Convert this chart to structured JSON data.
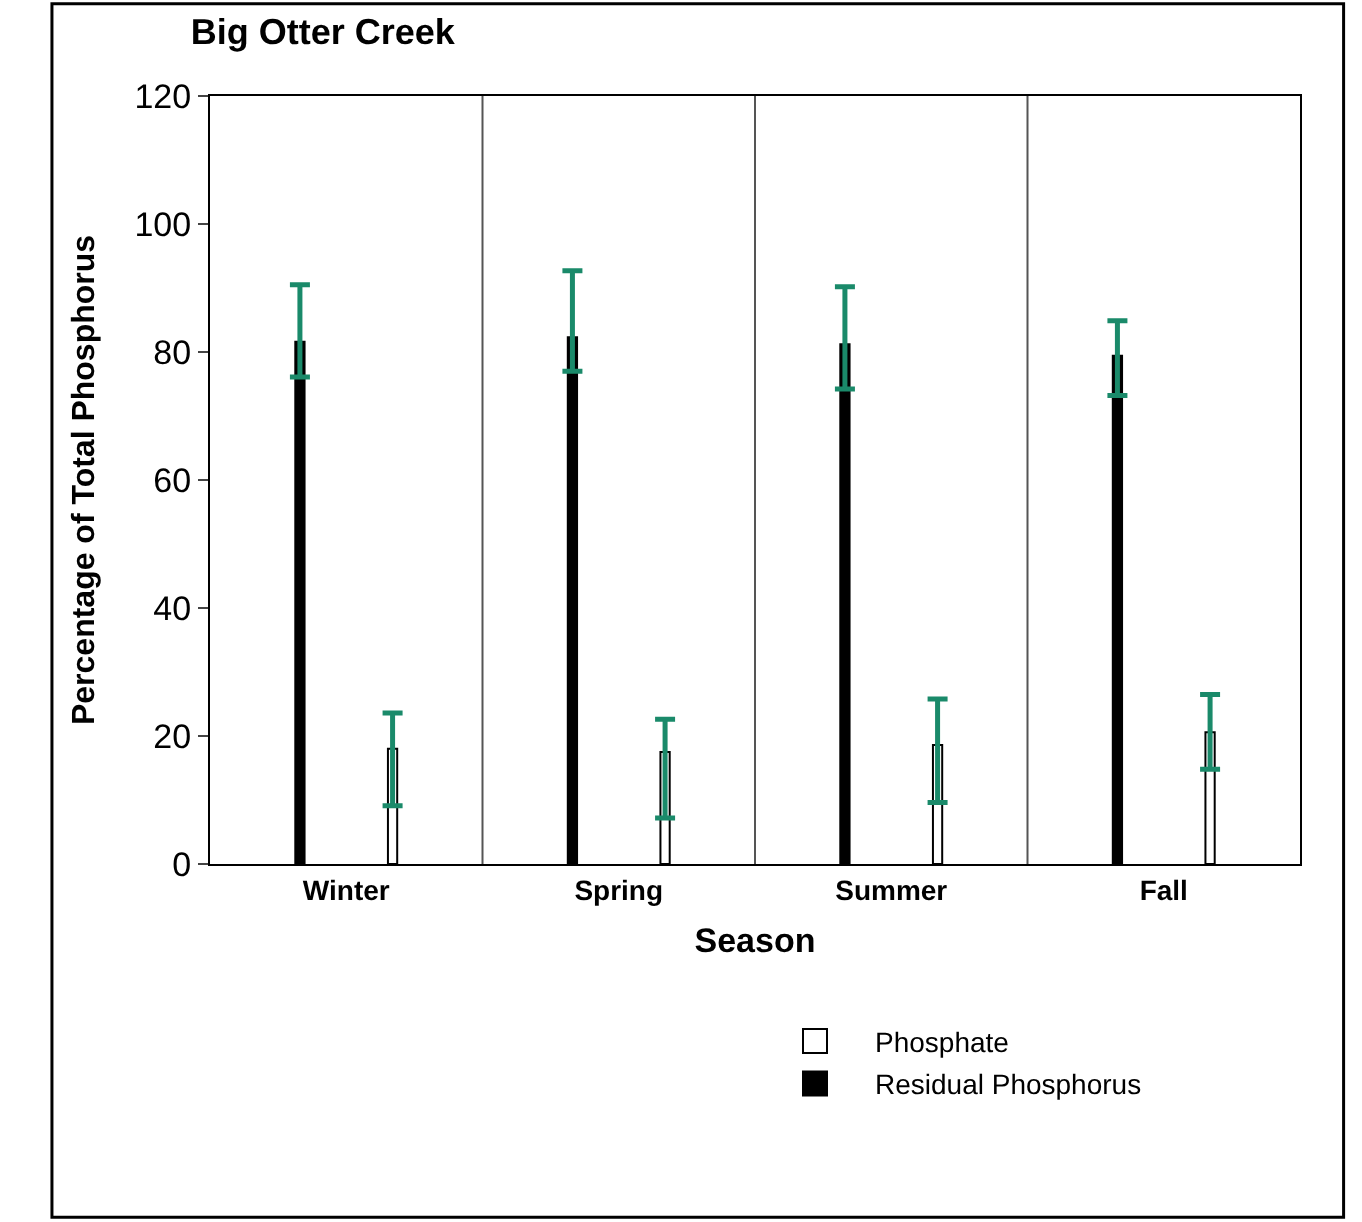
{
  "chart_data": {
    "type": "bar",
    "title": "Big Otter Creek",
    "xlabel": "Season",
    "ylabel": "Percentage of Total Phosphorus",
    "categories": [
      "Winter",
      "Spring",
      "Summer",
      "Fall"
    ],
    "series": [
      {
        "name": "Residual Phosphorus",
        "color": "#000000",
        "values": [
          81.6,
          82.3,
          81.2,
          79.4
        ],
        "errors": [
          [
            76.1,
            90.5
          ],
          [
            77.0,
            92.7
          ],
          [
            74.2,
            90.2
          ],
          [
            73.2,
            84.9
          ]
        ]
      },
      {
        "name": "Phosphate",
        "color": "#ffffff",
        "values": [
          18.0,
          17.5,
          18.6,
          20.6
        ],
        "errors": [
          [
            9.1,
            23.6
          ],
          [
            7.2,
            22.6
          ],
          [
            9.6,
            25.8
          ],
          [
            14.8,
            26.5
          ]
        ]
      }
    ],
    "ylim": [
      0,
      120
    ],
    "yticks": [
      0,
      20,
      40,
      60,
      80,
      100,
      120
    ],
    "grid": "x",
    "legend": "bottom right"
  }
}
